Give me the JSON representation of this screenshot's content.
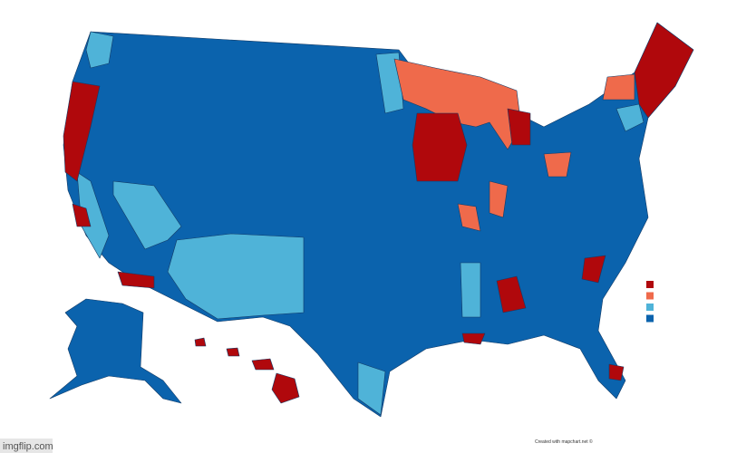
{
  "credit": "Created with mapchart.net ©",
  "watermark": "imgflip.com",
  "legend": {
    "colors": [
      "#b0080c",
      "#ef6a4b",
      "#4fb3d8",
      "#0b63ad"
    ]
  }
}
